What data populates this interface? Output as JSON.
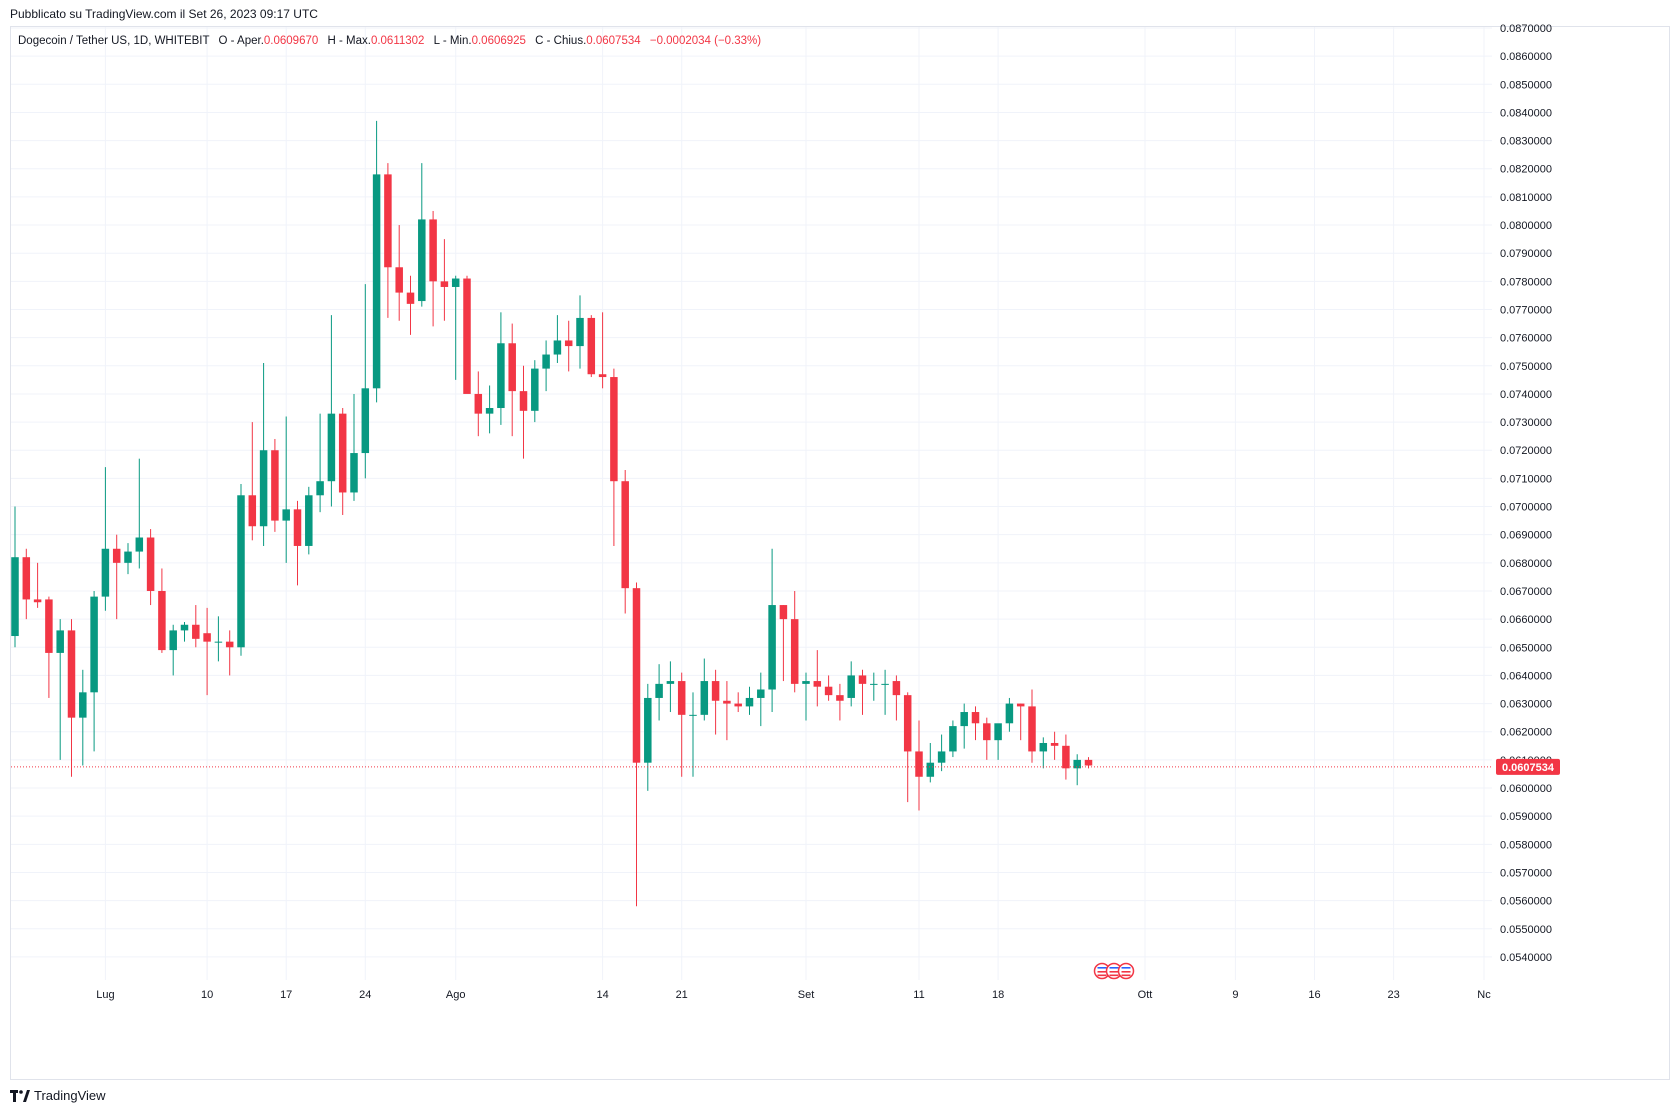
{
  "header": {
    "published": "Pubblicato su TradingView.com il Set 26, 2023 09:17 UTC"
  },
  "legend": {
    "symbol": "Dogecoin / Tether US, 1D, WHITEBIT",
    "open_label": "O - Aper.",
    "open": "0.0609670",
    "high_label": "H - Max.",
    "high": "0.0611302",
    "low_label": "L - Min.",
    "low": "0.0606925",
    "close_label": "C - Chius.",
    "close": "0.0607534",
    "change": "−0.0002034 (−0.33%)"
  },
  "brand": {
    "name": "TradingView",
    "icon": "tradingview-logo-icon"
  },
  "colors": {
    "up": "#089981",
    "down": "#f23645",
    "grid": "#f0f3fa",
    "axis_text": "#131722",
    "price_line": "#f23645"
  },
  "chart_data": {
    "type": "candlestick",
    "x_axis_type": "time",
    "ylim": [
      0.0535,
      0.087
    ],
    "y_ticks": [
      "0.0540000",
      "0.0550000",
      "0.0560000",
      "0.0570000",
      "0.0580000",
      "0.0590000",
      "0.0600000",
      "0.0610000",
      "0.0620000",
      "0.0630000",
      "0.0640000",
      "0.0650000",
      "0.0660000",
      "0.0670000",
      "0.0680000",
      "0.0690000",
      "0.0700000",
      "0.0710000",
      "0.0720000",
      "0.0730000",
      "0.0740000",
      "0.0750000",
      "0.0760000",
      "0.0770000",
      "0.0780000",
      "0.0790000",
      "0.0800000",
      "0.0810000",
      "0.0820000",
      "0.0830000",
      "0.0840000",
      "0.0850000",
      "0.0860000",
      "0.0870000"
    ],
    "x_ticks": [
      {
        "label": "Lug",
        "index": 8
      },
      {
        "label": "10",
        "index": 17
      },
      {
        "label": "17",
        "index": 24
      },
      {
        "label": "24",
        "index": 31
      },
      {
        "label": "Ago",
        "index": 39
      },
      {
        "label": "14",
        "index": 52
      },
      {
        "label": "21",
        "index": 59
      },
      {
        "label": "Set",
        "index": 70
      },
      {
        "label": "11",
        "index": 80
      },
      {
        "label": "18",
        "index": 87
      },
      {
        "label": "Ott",
        "index": 100
      },
      {
        "label": "9",
        "index": 108
      },
      {
        "label": "16",
        "index": 115
      },
      {
        "label": "23",
        "index": 122
      },
      {
        "label": "Nc",
        "index": 130
      }
    ],
    "last_price": "0.0607534",
    "ohlc": [
      [
        0.0654,
        0.07,
        0.065,
        0.0682
      ],
      [
        0.0682,
        0.0685,
        0.066,
        0.0667
      ],
      [
        0.0667,
        0.068,
        0.0664,
        0.0666
      ],
      [
        0.0667,
        0.0668,
        0.0632,
        0.0648
      ],
      [
        0.0648,
        0.066,
        0.061,
        0.0656
      ],
      [
        0.0656,
        0.066,
        0.0604,
        0.0625
      ],
      [
        0.0625,
        0.0642,
        0.0608,
        0.0634
      ],
      [
        0.0634,
        0.067,
        0.0613,
        0.0668
      ],
      [
        0.0668,
        0.0714,
        0.0663,
        0.0685
      ],
      [
        0.0685,
        0.069,
        0.066,
        0.068
      ],
      [
        0.068,
        0.0687,
        0.0676,
        0.0684
      ],
      [
        0.0684,
        0.0717,
        0.0678,
        0.0689
      ],
      [
        0.0689,
        0.0692,
        0.0665,
        0.067
      ],
      [
        0.067,
        0.0678,
        0.0648,
        0.0649
      ],
      [
        0.0649,
        0.0658,
        0.064,
        0.0656
      ],
      [
        0.0656,
        0.0659,
        0.0652,
        0.0658
      ],
      [
        0.0658,
        0.0665,
        0.065,
        0.0653
      ],
      [
        0.0655,
        0.0664,
        0.0633,
        0.0652
      ],
      [
        0.0652,
        0.0661,
        0.0645,
        0.0652
      ],
      [
        0.0652,
        0.0656,
        0.064,
        0.065
      ],
      [
        0.065,
        0.0708,
        0.0647,
        0.0704
      ],
      [
        0.0704,
        0.073,
        0.0688,
        0.0693
      ],
      [
        0.0693,
        0.0751,
        0.0686,
        0.072
      ],
      [
        0.072,
        0.0724,
        0.0691,
        0.0695
      ],
      [
        0.0695,
        0.0732,
        0.068,
        0.0699
      ],
      [
        0.0699,
        0.0702,
        0.0672,
        0.0686
      ],
      [
        0.0686,
        0.0707,
        0.0683,
        0.0704
      ],
      [
        0.0704,
        0.0733,
        0.0698,
        0.0709
      ],
      [
        0.0709,
        0.0768,
        0.07,
        0.0733
      ],
      [
        0.0733,
        0.0735,
        0.0697,
        0.0705
      ],
      [
        0.0705,
        0.074,
        0.0702,
        0.0719
      ],
      [
        0.0719,
        0.0779,
        0.071,
        0.0742
      ],
      [
        0.0742,
        0.0837,
        0.0737,
        0.0818
      ],
      [
        0.0818,
        0.0822,
        0.0767,
        0.0785
      ],
      [
        0.0785,
        0.08,
        0.0766,
        0.0776
      ],
      [
        0.0776,
        0.0782,
        0.0761,
        0.0772
      ],
      [
        0.0773,
        0.0822,
        0.0771,
        0.0802
      ],
      [
        0.0802,
        0.0805,
        0.0764,
        0.078
      ],
      [
        0.078,
        0.0795,
        0.0766,
        0.0778
      ],
      [
        0.0778,
        0.0782,
        0.0745,
        0.0781
      ],
      [
        0.0781,
        0.0782,
        0.0743,
        0.074
      ],
      [
        0.074,
        0.0748,
        0.0725,
        0.0733
      ],
      [
        0.0733,
        0.0743,
        0.0726,
        0.0735
      ],
      [
        0.0735,
        0.0769,
        0.0729,
        0.0758
      ],
      [
        0.0758,
        0.0765,
        0.0725,
        0.0741
      ],
      [
        0.0741,
        0.075,
        0.0717,
        0.0734
      ],
      [
        0.0734,
        0.0752,
        0.073,
        0.0749
      ],
      [
        0.0749,
        0.0759,
        0.0741,
        0.0754
      ],
      [
        0.0754,
        0.0768,
        0.0751,
        0.0759
      ],
      [
        0.0759,
        0.0766,
        0.0748,
        0.0757
      ],
      [
        0.0757,
        0.0775,
        0.0749,
        0.0767
      ],
      [
        0.0767,
        0.0768,
        0.0746,
        0.0747
      ],
      [
        0.0747,
        0.0769,
        0.0742,
        0.0746
      ],
      [
        0.0746,
        0.0749,
        0.0686,
        0.0709
      ],
      [
        0.0709,
        0.0713,
        0.0662,
        0.0671
      ],
      [
        0.0671,
        0.0673,
        0.0558,
        0.0609
      ],
      [
        0.0609,
        0.0637,
        0.0599,
        0.0632
      ],
      [
        0.0632,
        0.0644,
        0.0624,
        0.0637
      ],
      [
        0.0637,
        0.0645,
        0.0627,
        0.0638
      ],
      [
        0.0638,
        0.0641,
        0.0604,
        0.0626
      ],
      [
        0.0626,
        0.0634,
        0.0604,
        0.0626
      ],
      [
        0.0626,
        0.0646,
        0.0624,
        0.0638
      ],
      [
        0.0638,
        0.0642,
        0.0619,
        0.0631
      ],
      [
        0.0631,
        0.0638,
        0.0617,
        0.063
      ],
      [
        0.063,
        0.0634,
        0.0627,
        0.0629
      ],
      [
        0.0629,
        0.0636,
        0.0626,
        0.0632
      ],
      [
        0.0632,
        0.0641,
        0.0622,
        0.0635
      ],
      [
        0.0635,
        0.0685,
        0.0627,
        0.0665
      ],
      [
        0.0665,
        0.0665,
        0.0638,
        0.066
      ],
      [
        0.066,
        0.067,
        0.0634,
        0.0637
      ],
      [
        0.0637,
        0.0641,
        0.0624,
        0.0638
      ],
      [
        0.0638,
        0.0649,
        0.0629,
        0.0636
      ],
      [
        0.0636,
        0.064,
        0.0631,
        0.0633
      ],
      [
        0.0633,
        0.0637,
        0.0624,
        0.0631
      ],
      [
        0.0632,
        0.0645,
        0.0629,
        0.064
      ],
      [
        0.064,
        0.0642,
        0.0626,
        0.0637
      ],
      [
        0.0637,
        0.0641,
        0.0631,
        0.0637
      ],
      [
        0.0637,
        0.0642,
        0.0626,
        0.0637
      ],
      [
        0.0638,
        0.064,
        0.0624,
        0.0633
      ],
      [
        0.0633,
        0.0634,
        0.0595,
        0.0613
      ],
      [
        0.0613,
        0.0624,
        0.0592,
        0.0604
      ],
      [
        0.0604,
        0.0616,
        0.0602,
        0.0609
      ],
      [
        0.0609,
        0.0619,
        0.0606,
        0.0613
      ],
      [
        0.0613,
        0.0624,
        0.0611,
        0.0622
      ],
      [
        0.0622,
        0.063,
        0.0614,
        0.0627
      ],
      [
        0.0627,
        0.0629,
        0.0617,
        0.0623
      ],
      [
        0.0623,
        0.0625,
        0.061,
        0.0617
      ],
      [
        0.0617,
        0.0621,
        0.061,
        0.0623
      ],
      [
        0.0623,
        0.0632,
        0.062,
        0.063
      ],
      [
        0.063,
        0.063,
        0.0617,
        0.0629
      ],
      [
        0.0629,
        0.0635,
        0.0609,
        0.0613
      ],
      [
        0.0613,
        0.0618,
        0.0607,
        0.0616
      ],
      [
        0.0616,
        0.062,
        0.061,
        0.0615
      ],
      [
        0.0615,
        0.0619,
        0.0603,
        0.0607
      ],
      [
        0.0607,
        0.0612,
        0.0601,
        0.061
      ],
      [
        0.061,
        0.0611,
        0.0607,
        0.0608
      ]
    ]
  }
}
